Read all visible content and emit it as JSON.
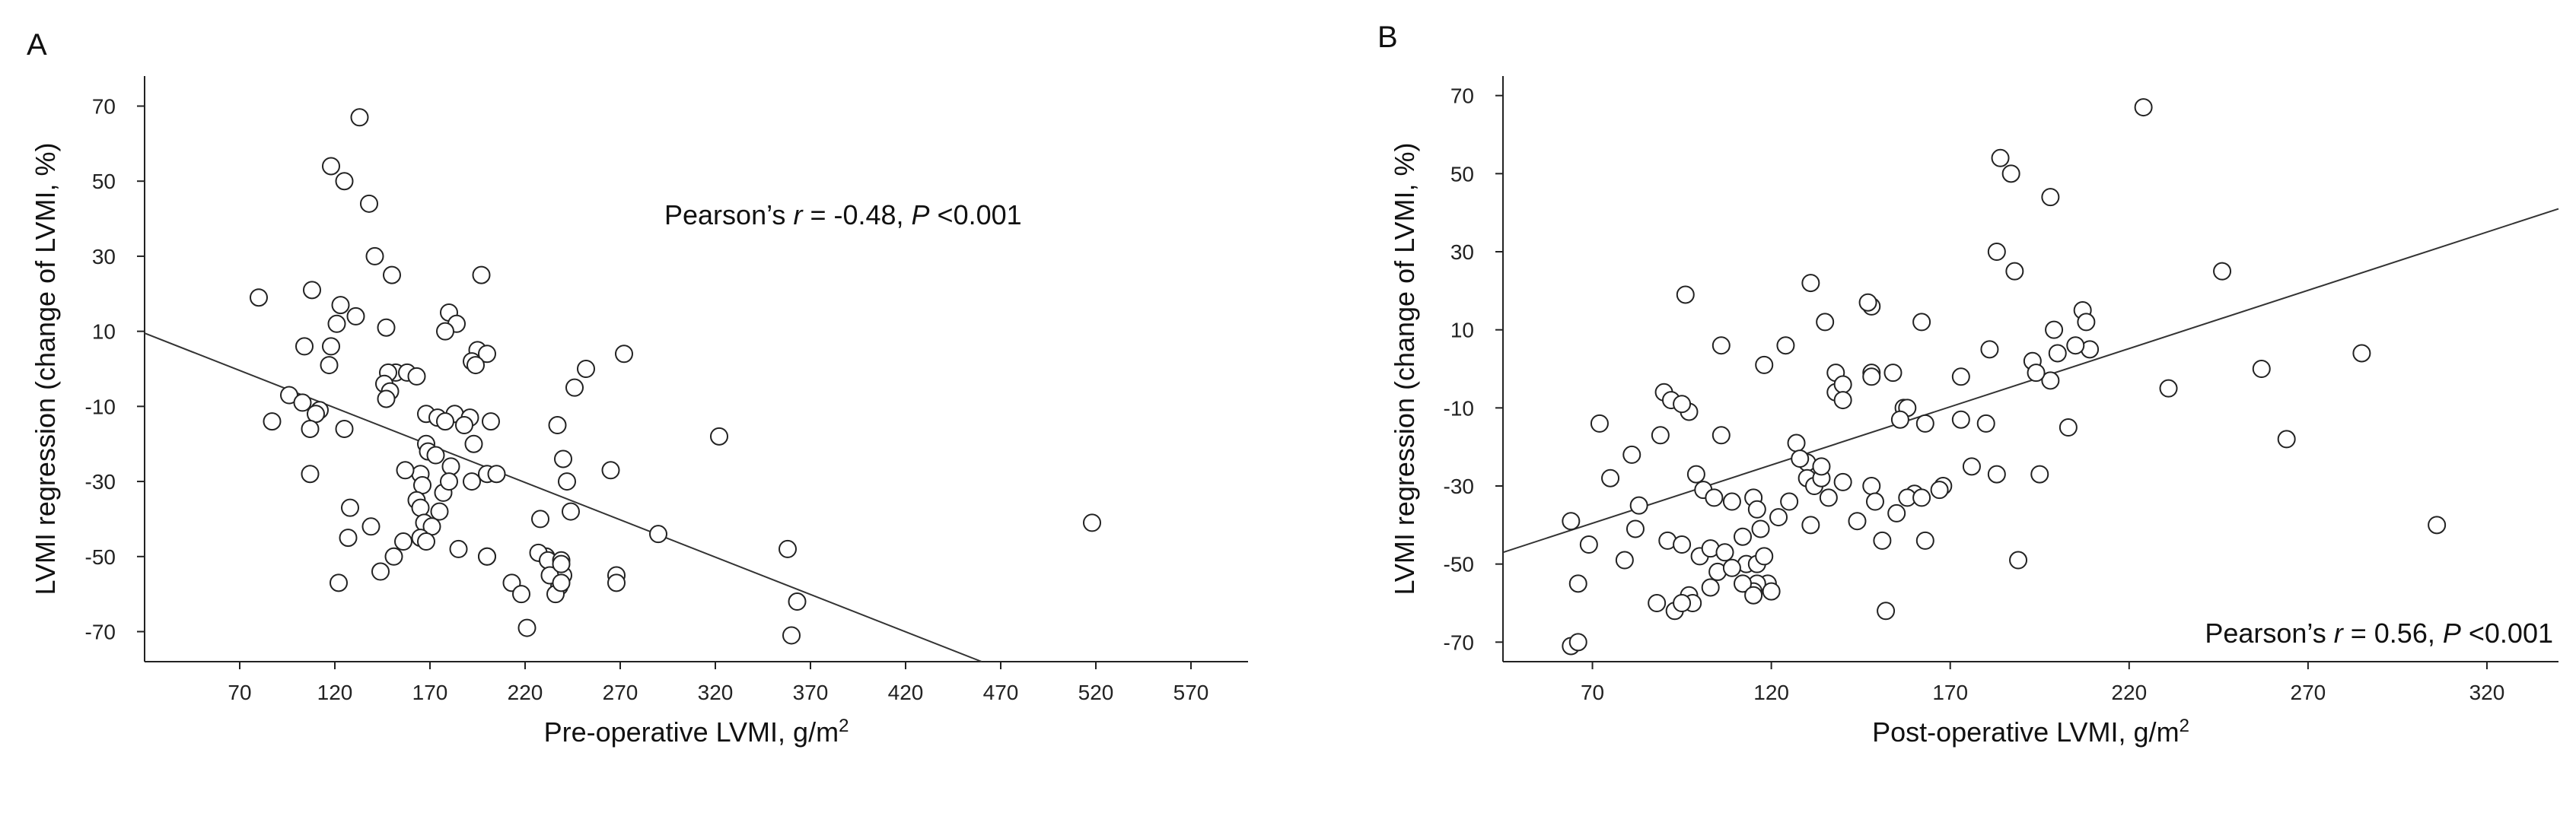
{
  "chart_data": [
    {
      "type": "scatter",
      "panel_label": "A",
      "xlabel": "Pre-operative LVMI, g/m",
      "xlabel_sup": "2",
      "ylabel": "LVMI regression (change of LVMI, %)",
      "xlim": [
        20,
        600
      ],
      "ylim": [
        -78,
        78
      ],
      "xticks": [
        70,
        120,
        170,
        220,
        270,
        320,
        370,
        420,
        470,
        520,
        570
      ],
      "yticks": [
        70,
        50,
        30,
        10,
        -10,
        -30,
        -50,
        -70
      ],
      "annotation": {
        "prefix": "Pearson’s ",
        "r_symbol": "r",
        "r_value": " = -0.48, ",
        "p_symbol": "P",
        "p_value": " <0.001",
        "position": "top-right"
      },
      "regression_line": {
        "x": [
          20,
          460
        ],
        "y": [
          9.5,
          -78
        ]
      },
      "points": {
        "x": [
          133,
          118,
          125,
          138,
          141,
          150,
          197,
          80,
          108,
          123,
          121,
          131,
          147,
          118,
          104,
          117,
          180,
          184,
          178,
          195,
          192,
          200,
          194,
          152,
          158,
          163,
          148,
          146,
          112,
          96,
          103,
          110,
          87,
          107,
          125,
          149,
          147,
          168,
          174,
          183,
          191,
          202,
          178,
          188,
          168,
          169,
          173,
          200,
          205,
          192,
          181,
          177,
          165,
          166,
          180,
          200,
          157,
          163,
          165,
          167,
          156,
          107,
          128,
          127,
          139,
          144,
          151,
          122,
          175,
          171,
          165,
          168,
          193,
          185,
          200,
          213,
          218,
          221,
          231,
          228,
          227,
          232,
          239,
          240,
          238,
          236,
          233,
          239,
          244,
          239,
          242,
          246,
          237,
          240,
          252,
          272,
          265,
          268,
          268,
          290,
          322,
          358,
          363,
          360,
          518
        ],
        "y": [
          67,
          54,
          50,
          44,
          30,
          25,
          25,
          19,
          21,
          17,
          12,
          14,
          11,
          6,
          6,
          1,
          15,
          12,
          10,
          5,
          2,
          4,
          1,
          -1,
          -1,
          -2,
          -1,
          -4,
          -11,
          -7,
          -9,
          -12,
          -14,
          -16,
          -16,
          -6,
          -8,
          -12,
          -13,
          -12,
          -13,
          -14,
          -14,
          -15,
          -20,
          -22,
          -23,
          -28,
          -28,
          -30,
          -26,
          -33,
          -28,
          -31,
          -30,
          -50,
          -27,
          -35,
          -37,
          -41,
          -46,
          -28,
          -37,
          -45,
          -42,
          -54,
          -50,
          -57,
          -38,
          -42,
          -45,
          -46,
          -20,
          -48,
          -50,
          -57,
          -60,
          -69,
          -50,
          -40,
          -49,
          -51,
          -51,
          -55,
          -58,
          -60,
          -55,
          -57,
          -38,
          -52,
          -30,
          -5,
          -15,
          -24,
          0,
          4,
          -27,
          -55,
          -57,
          -44,
          -18,
          -48,
          -62,
          -71,
          -41
        ]
      }
    },
    {
      "type": "scatter",
      "panel_label": "B",
      "xlabel": "Post-operative LVMI, g/m",
      "xlabel_sup": "2",
      "ylabel": "LVMI regression (change of LVMI, %)",
      "xlim": [
        45,
        340
      ],
      "ylim": [
        -75,
        75
      ],
      "xticks": [
        70,
        120,
        170,
        220,
        270,
        320
      ],
      "yticks": [
        70,
        50,
        30,
        10,
        -10,
        -30,
        -50,
        -70
      ],
      "annotation": {
        "prefix": "Pearson’s ",
        "r_symbol": "r",
        "r_value": " = 0.56, ",
        "p_symbol": "P",
        "p_value": " <0.001",
        "position": "bottom-right"
      },
      "regression_line": {
        "x": [
          45,
          340
        ],
        "y": [
          -47,
          41
        ]
      },
      "points": {
        "x": [
          224,
          184,
          187,
          198,
          183,
          188,
          246,
          207,
          209,
          199,
          200,
          205,
          285,
          231,
          198,
          208,
          193,
          195,
          96,
          131,
          148,
          162,
          147,
          181,
          135,
          106,
          124,
          118,
          148,
          138,
          138,
          140,
          140,
          148,
          154,
          173,
          157,
          158,
          163,
          156,
          173,
          180,
          176,
          168,
          167,
          160,
          158,
          163,
          183,
          194,
          203,
          257,
          264,
          306,
          90,
          92,
          97,
          95,
          106,
          72,
          89,
          75,
          81,
          99,
          101,
          104,
          115,
          116,
          122,
          125,
          130,
          130,
          132,
          134,
          136,
          131,
          144,
          148,
          149,
          151,
          152,
          155,
          109,
          117,
          127,
          128,
          134,
          140,
          162,
          189,
          64,
          69,
          66,
          79,
          83,
          82,
          91,
          95,
          97,
          98,
          103,
          105,
          112,
          113,
          116,
          118,
          119,
          109,
          116,
          115,
          120,
          88,
          93,
          95,
          100,
          103,
          107,
          112,
          115,
          64,
          66
        ],
        "y": [
          67,
          54,
          50,
          44,
          30,
          25,
          25,
          15,
          5,
          10,
          4,
          6,
          4,
          -5,
          -3,
          12,
          2,
          -27,
          19,
          22,
          16,
          12,
          17,
          5,
          12,
          6,
          6,
          1,
          -1,
          -1,
          -6,
          -4,
          -8,
          -2,
          -1,
          -2,
          -10,
          -10,
          -14,
          -13,
          -13,
          -14,
          -25,
          -30,
          -31,
          -32,
          -33,
          -44,
          -27,
          -1,
          -15,
          0,
          -18,
          -40,
          -6,
          -8,
          -11,
          -9,
          -17,
          -14,
          -17,
          -28,
          -22,
          -27,
          -31,
          -33,
          -33,
          -36,
          -38,
          -34,
          -24,
          -28,
          -30,
          -28,
          -33,
          -40,
          -39,
          -30,
          -34,
          -44,
          -62,
          -37,
          -34,
          -41,
          -19,
          -23,
          -25,
          -29,
          -33,
          -49,
          -39,
          -45,
          -55,
          -49,
          -35,
          -41,
          -44,
          -45,
          -58,
          -60,
          -56,
          -52,
          -43,
          -50,
          -50,
          -48,
          -55,
          -51,
          -55,
          -57,
          -57,
          -60,
          -62,
          -60,
          -48,
          -46,
          -47,
          -55,
          -58,
          -71,
          -70
        ]
      }
    }
  ]
}
